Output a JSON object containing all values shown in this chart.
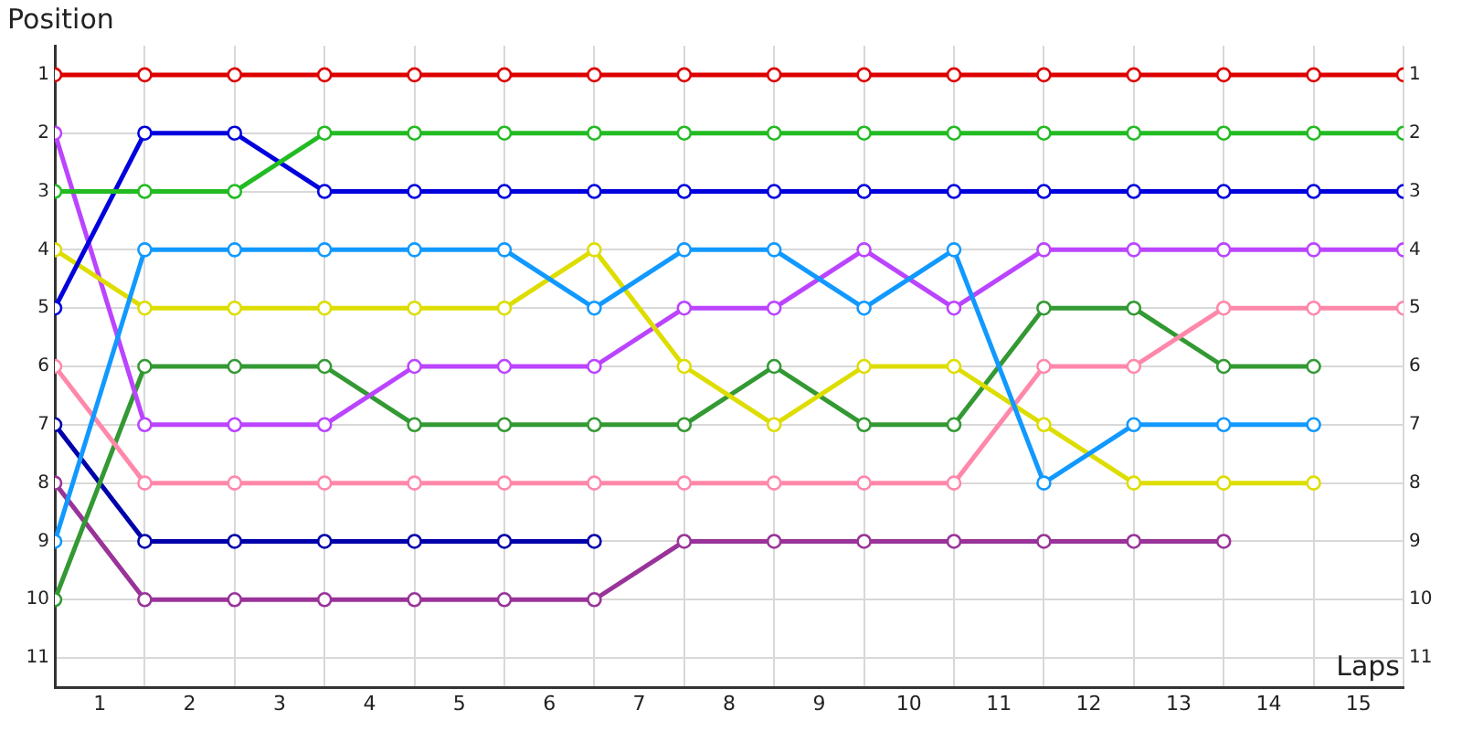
{
  "chart_data": {
    "type": "line",
    "xlabel": "Laps",
    "ylabel": "Position",
    "x": [
      0,
      1,
      2,
      3,
      4,
      5,
      6,
      7,
      8,
      9,
      10,
      11,
      12,
      13,
      14,
      15
    ],
    "xlim": [
      0,
      15
    ],
    "xticks": [
      {
        "value": 0,
        "label": null
      },
      {
        "value": 0.5,
        "label": "1"
      },
      {
        "value": 1,
        "label": null
      },
      {
        "value": 1.5,
        "label": "2"
      },
      {
        "value": 2,
        "label": null
      },
      {
        "value": 2.5,
        "label": "3"
      },
      {
        "value": 3,
        "label": null
      },
      {
        "value": 3.5,
        "label": "4"
      },
      {
        "value": 4,
        "label": null
      },
      {
        "value": 4.5,
        "label": "5"
      },
      {
        "value": 5,
        "label": null
      },
      {
        "value": 5.5,
        "label": "6"
      },
      {
        "value": 6,
        "label": null
      },
      {
        "value": 6.5,
        "label": "7"
      },
      {
        "value": 7,
        "label": null
      },
      {
        "value": 7.5,
        "label": "8"
      },
      {
        "value": 8,
        "label": null
      },
      {
        "value": 8.5,
        "label": "9"
      },
      {
        "value": 9,
        "label": null
      },
      {
        "value": 9.5,
        "label": "10"
      },
      {
        "value": 10,
        "label": null
      },
      {
        "value": 10.5,
        "label": "11"
      },
      {
        "value": 11,
        "label": null
      },
      {
        "value": 11.5,
        "label": "12"
      },
      {
        "value": 12,
        "label": null
      },
      {
        "value": 12.5,
        "label": "13"
      },
      {
        "value": 13,
        "label": null
      },
      {
        "value": 13.5,
        "label": "14"
      },
      {
        "value": 14,
        "label": null
      },
      {
        "value": 14.5,
        "label": "15"
      },
      {
        "value": 15,
        "label": null
      }
    ],
    "ylim": [
      11.5,
      0.5
    ],
    "yticks": [
      1,
      2,
      3,
      4,
      5,
      6,
      7,
      8,
      9,
      10,
      11
    ],
    "y2lim": [
      11.5,
      0.5
    ],
    "y2ticks": [
      1,
      2,
      3,
      4,
      5,
      6,
      7,
      8,
      9,
      10,
      11
    ],
    "grid": true,
    "legend": false,
    "marker": "circle",
    "line_style": "solid",
    "series": [
      {
        "color": "#dd0000",
        "values": [
          1,
          1,
          1,
          1,
          1,
          1,
          1,
          1,
          1,
          1,
          1,
          1,
          1,
          1,
          1,
          1
        ]
      },
      {
        "color": "#22bb22",
        "values": [
          3,
          3,
          3,
          2,
          2,
          2,
          2,
          2,
          2,
          2,
          2,
          2,
          2,
          2,
          2,
          2
        ]
      },
      {
        "color": "#0000dd",
        "values": [
          5,
          2,
          2,
          3,
          3,
          3,
          3,
          3,
          3,
          3,
          3,
          3,
          3,
          3,
          3,
          3
        ]
      },
      {
        "color": "#1199ff",
        "values": [
          9,
          4,
          4,
          4,
          4,
          4,
          5,
          4,
          4,
          5,
          4,
          8,
          7,
          7,
          7,
          null
        ]
      },
      {
        "color": "#dddd00",
        "values": [
          4,
          5,
          5,
          5,
          5,
          5,
          4,
          6,
          7,
          6,
          6,
          7,
          8,
          8,
          8,
          null
        ]
      },
      {
        "color": "#bb44ff",
        "values": [
          2,
          7,
          7,
          7,
          6,
          6,
          6,
          5,
          5,
          4,
          5,
          4,
          4,
          4,
          4,
          4
        ]
      },
      {
        "color": "#ff88aa",
        "values": [
          6,
          8,
          8,
          8,
          8,
          8,
          8,
          8,
          8,
          8,
          8,
          6,
          6,
          5,
          5,
          5
        ]
      },
      {
        "color": "#339933",
        "values": [
          10,
          6,
          6,
          6,
          7,
          7,
          7,
          7,
          6,
          7,
          7,
          5,
          5,
          6,
          6,
          null
        ]
      },
      {
        "color": "#0000aa",
        "values": [
          7,
          9,
          9,
          9,
          9,
          9,
          9,
          null,
          null,
          null,
          null,
          null,
          null,
          null,
          null,
          null
        ]
      },
      {
        "color": "#993399",
        "values": [
          8,
          10,
          10,
          10,
          10,
          10,
          10,
          9,
          9,
          9,
          9,
          9,
          9,
          9,
          null,
          null
        ]
      }
    ]
  }
}
